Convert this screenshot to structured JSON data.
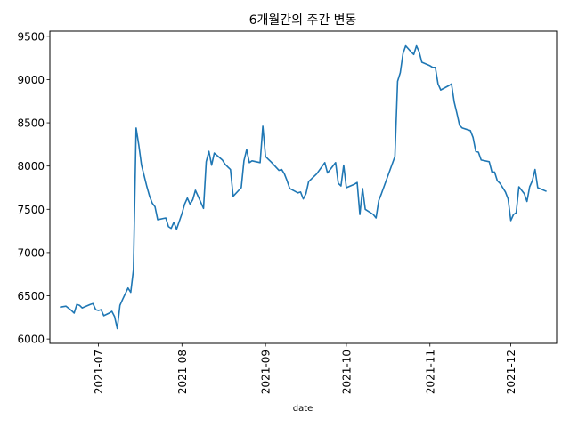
{
  "chart_data": {
    "type": "line",
    "title": "6개월간의 주간 변동",
    "xlabel": "date",
    "ylabel": "",
    "x_axis_type": "date",
    "xlim": [
      "2021-06-13",
      "2021-12-18"
    ],
    "ylim": [
      5950,
      9560
    ],
    "grid": false,
    "line_color": "#1f77b4",
    "x_ticks": [
      {
        "date": "2021-07-01",
        "label": "2021-07"
      },
      {
        "date": "2021-08-01",
        "label": "2021-08"
      },
      {
        "date": "2021-09-01",
        "label": "2021-09"
      },
      {
        "date": "2021-10-01",
        "label": "2021-10"
      },
      {
        "date": "2021-11-01",
        "label": "2021-11"
      },
      {
        "date": "2021-12-01",
        "label": "2021-12"
      }
    ],
    "y_ticks": [
      {
        "value": 6000,
        "label": "6000"
      },
      {
        "value": 6500,
        "label": "6500"
      },
      {
        "value": 7000,
        "label": "7000"
      },
      {
        "value": 7500,
        "label": "7500"
      },
      {
        "value": 8000,
        "label": "8000"
      },
      {
        "value": 8500,
        "label": "8500"
      },
      {
        "value": 9000,
        "label": "9000"
      },
      {
        "value": 9500,
        "label": "9500"
      }
    ],
    "series": [
      {
        "points": [
          [
            "2021-06-17",
            6370
          ],
          [
            "2021-06-19",
            6380
          ],
          [
            "2021-06-21",
            6330
          ],
          [
            "2021-06-22",
            6300
          ],
          [
            "2021-06-23",
            6400
          ],
          [
            "2021-06-24",
            6390
          ],
          [
            "2021-06-25",
            6360
          ],
          [
            "2021-06-28",
            6400
          ],
          [
            "2021-06-29",
            6410
          ],
          [
            "2021-06-30",
            6340
          ],
          [
            "2021-07-01",
            6330
          ],
          [
            "2021-07-02",
            6340
          ],
          [
            "2021-07-03",
            6270
          ],
          [
            "2021-07-05",
            6300
          ],
          [
            "2021-07-06",
            6320
          ],
          [
            "2021-07-07",
            6260
          ],
          [
            "2021-07-08",
            6120
          ],
          [
            "2021-07-09",
            6390
          ],
          [
            "2021-07-10",
            6460
          ],
          [
            "2021-07-12",
            6590
          ],
          [
            "2021-07-13",
            6540
          ],
          [
            "2021-07-14",
            6800
          ],
          [
            "2021-07-15",
            8440
          ],
          [
            "2021-07-16",
            8240
          ],
          [
            "2021-07-17",
            8010
          ],
          [
            "2021-07-19",
            7760
          ],
          [
            "2021-07-20",
            7650
          ],
          [
            "2021-07-21",
            7570
          ],
          [
            "2021-07-22",
            7530
          ],
          [
            "2021-07-23",
            7380
          ],
          [
            "2021-07-26",
            7400
          ],
          [
            "2021-07-27",
            7300
          ],
          [
            "2021-07-28",
            7280
          ],
          [
            "2021-07-29",
            7350
          ],
          [
            "2021-07-30",
            7270
          ],
          [
            "2021-08-01",
            7450
          ],
          [
            "2021-08-02",
            7560
          ],
          [
            "2021-08-03",
            7630
          ],
          [
            "2021-08-04",
            7560
          ],
          [
            "2021-08-05",
            7610
          ],
          [
            "2021-08-06",
            7720
          ],
          [
            "2021-08-07",
            7650
          ],
          [
            "2021-08-09",
            7510
          ],
          [
            "2021-08-10",
            8050
          ],
          [
            "2021-08-11",
            8170
          ],
          [
            "2021-08-12",
            8010
          ],
          [
            "2021-08-13",
            8150
          ],
          [
            "2021-08-16",
            8070
          ],
          [
            "2021-08-17",
            8020
          ],
          [
            "2021-08-19",
            7960
          ],
          [
            "2021-08-20",
            7650
          ],
          [
            "2021-08-23",
            7750
          ],
          [
            "2021-08-24",
            8060
          ],
          [
            "2021-08-25",
            8190
          ],
          [
            "2021-08-26",
            8040
          ],
          [
            "2021-08-27",
            8060
          ],
          [
            "2021-08-30",
            8040
          ],
          [
            "2021-08-31",
            8460
          ],
          [
            "2021-09-01",
            8110
          ],
          [
            "2021-09-02",
            8080
          ],
          [
            "2021-09-03",
            8050
          ],
          [
            "2021-09-06",
            7950
          ],
          [
            "2021-09-07",
            7960
          ],
          [
            "2021-09-08",
            7910
          ],
          [
            "2021-09-09",
            7830
          ],
          [
            "2021-09-10",
            7740
          ],
          [
            "2021-09-13",
            7690
          ],
          [
            "2021-09-14",
            7700
          ],
          [
            "2021-09-15",
            7620
          ],
          [
            "2021-09-16",
            7680
          ],
          [
            "2021-09-17",
            7820
          ],
          [
            "2021-09-20",
            7910
          ],
          [
            "2021-09-23",
            8040
          ],
          [
            "2021-09-24",
            7920
          ],
          [
            "2021-09-27",
            8040
          ],
          [
            "2021-09-28",
            7800
          ],
          [
            "2021-09-29",
            7770
          ],
          [
            "2021-09-30",
            8010
          ],
          [
            "2021-10-01",
            7750
          ],
          [
            "2021-10-04",
            7790
          ],
          [
            "2021-10-05",
            7810
          ],
          [
            "2021-10-06",
            7440
          ],
          [
            "2021-10-07",
            7740
          ],
          [
            "2021-10-08",
            7500
          ],
          [
            "2021-10-11",
            7440
          ],
          [
            "2021-10-12",
            7400
          ],
          [
            "2021-10-13",
            7600
          ],
          [
            "2021-10-14",
            7680
          ],
          [
            "2021-10-19",
            8110
          ],
          [
            "2021-10-20",
            8980
          ],
          [
            "2021-10-21",
            9080
          ],
          [
            "2021-10-22",
            9300
          ],
          [
            "2021-10-23",
            9390
          ],
          [
            "2021-10-25",
            9320
          ],
          [
            "2021-10-26",
            9290
          ],
          [
            "2021-10-27",
            9390
          ],
          [
            "2021-10-28",
            9320
          ],
          [
            "2021-10-29",
            9200
          ],
          [
            "2021-11-01",
            9160
          ],
          [
            "2021-11-02",
            9140
          ],
          [
            "2021-11-03",
            9140
          ],
          [
            "2021-11-04",
            8950
          ],
          [
            "2021-11-05",
            8880
          ],
          [
            "2021-11-08",
            8930
          ],
          [
            "2021-11-09",
            8950
          ],
          [
            "2021-11-10",
            8740
          ],
          [
            "2021-11-11",
            8610
          ],
          [
            "2021-11-12",
            8470
          ],
          [
            "2021-11-13",
            8440
          ],
          [
            "2021-11-16",
            8410
          ],
          [
            "2021-11-17",
            8330
          ],
          [
            "2021-11-18",
            8170
          ],
          [
            "2021-11-19",
            8160
          ],
          [
            "2021-11-20",
            8070
          ],
          [
            "2021-11-23",
            8050
          ],
          [
            "2021-11-24",
            7930
          ],
          [
            "2021-11-25",
            7930
          ],
          [
            "2021-11-26",
            7830
          ],
          [
            "2021-11-27",
            7800
          ],
          [
            "2021-11-29",
            7700
          ],
          [
            "2021-11-30",
            7620
          ],
          [
            "2021-12-01",
            7370
          ],
          [
            "2021-12-02",
            7440
          ],
          [
            "2021-12-03",
            7460
          ],
          [
            "2021-12-04",
            7760
          ],
          [
            "2021-12-06",
            7680
          ],
          [
            "2021-12-07",
            7590
          ],
          [
            "2021-12-08",
            7760
          ],
          [
            "2021-12-09",
            7830
          ],
          [
            "2021-12-10",
            7960
          ],
          [
            "2021-12-11",
            7750
          ],
          [
            "2021-12-14",
            7710
          ]
        ]
      }
    ]
  }
}
